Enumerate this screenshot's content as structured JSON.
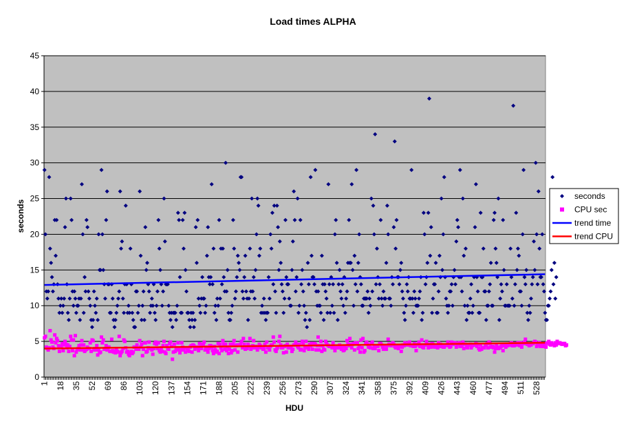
{
  "chart_data": {
    "type": "scatter",
    "title": "Load times ALPHA",
    "xlabel": "HDU",
    "ylabel": "seconds",
    "xlim": [
      1,
      537
    ],
    "ylim": [
      0,
      45
    ],
    "y_ticks": [
      0,
      5,
      10,
      15,
      20,
      25,
      30,
      35,
      40,
      45
    ],
    "x_tick_labels": [
      "1",
      "18",
      "35",
      "52",
      "69",
      "86",
      "103",
      "120",
      "137",
      "154",
      "171",
      "188",
      "205",
      "222",
      "239",
      "256",
      "273",
      "290",
      "307",
      "324",
      "341",
      "358",
      "375",
      "392",
      "409",
      "426",
      "443",
      "460",
      "477",
      "494",
      "511",
      "528"
    ],
    "gridlines": "horizontal",
    "plot_background": "#c0c0c0",
    "legend_position": "right",
    "legend": [
      {
        "name": "seconds",
        "marker": "diamond",
        "color": "#000080"
      },
      {
        "name": "CPU sec",
        "marker": "square",
        "color": "#ff00ff"
      },
      {
        "name": "trend time",
        "marker": "line",
        "color": "#0000ff"
      },
      {
        "name": "trend CPU",
        "marker": "line",
        "color": "#ff0000"
      }
    ],
    "series": [
      {
        "name": "seconds",
        "marker": "diamond",
        "color": "#000080",
        "values": [
          29,
          20,
          12,
          11,
          12,
          28,
          18,
          16,
          14,
          12,
          13,
          22,
          17,
          22,
          13,
          11,
          9,
          10,
          11,
          9,
          10,
          11,
          21,
          25,
          13,
          9,
          8,
          11,
          25,
          22,
          12,
          10,
          12,
          11,
          9,
          10,
          10,
          11,
          8,
          11,
          27,
          20,
          9,
          14,
          12,
          22,
          21,
          12,
          11,
          10,
          8,
          7,
          8,
          12,
          10,
          9,
          11,
          8,
          20,
          15,
          15,
          29,
          20,
          15,
          13,
          11,
          22,
          26,
          13,
          13,
          9,
          9,
          13,
          11,
          8,
          7,
          8,
          9,
          10,
          11,
          12,
          26,
          18,
          19,
          11,
          9,
          13,
          24,
          13,
          9,
          10,
          9,
          18,
          13,
          9,
          8,
          7,
          7,
          12,
          12,
          9,
          10,
          26,
          17,
          8,
          10,
          12,
          8,
          21,
          15,
          16,
          13,
          12,
          9,
          10,
          11,
          10,
          13,
          9,
          8,
          10,
          12,
          22,
          18,
          15,
          13,
          10,
          12,
          25,
          19,
          13,
          13,
          13,
          10,
          9,
          8,
          9,
          7,
          9,
          9,
          9,
          8,
          10,
          23,
          22,
          14,
          9,
          9,
          22,
          18,
          23,
          15,
          12,
          9,
          9,
          8,
          7,
          9,
          8,
          9,
          7,
          8,
          21,
          16,
          22,
          11,
          10,
          9,
          11,
          14,
          11,
          11,
          9,
          10,
          17,
          21,
          14,
          13,
          14,
          27,
          13,
          18,
          9,
          10,
          8,
          11,
          10,
          22,
          11,
          18,
          13,
          18,
          14,
          12,
          30,
          12,
          15,
          9,
          8,
          8,
          9,
          10,
          22,
          18,
          11,
          12,
          14,
          17,
          16,
          15,
          28,
          28,
          12,
          11,
          14,
          17,
          12,
          11,
          8,
          11,
          18,
          12,
          25,
          12,
          14,
          11,
          15,
          20,
          25,
          24,
          17,
          18,
          9,
          10,
          9,
          11,
          9,
          8,
          9,
          9,
          14,
          11,
          20,
          18,
          23,
          13,
          24,
          12,
          9,
          24,
          21,
          15,
          19,
          16,
          13,
          12,
          9,
          11,
          22,
          14,
          13,
          13,
          11,
          10,
          10,
          15,
          19,
          26,
          22,
          12,
          14,
          25,
          9,
          10,
          22,
          13,
          15,
          12,
          10,
          8,
          9,
          7,
          16,
          13,
          8,
          28,
          17,
          14,
          14,
          13,
          29,
          12,
          10,
          12,
          10,
          10,
          9,
          17,
          13,
          8,
          13,
          12,
          11,
          9,
          27,
          13,
          9,
          14,
          10,
          13,
          9,
          20,
          22,
          16,
          8,
          13,
          15,
          12,
          11,
          13,
          10,
          14,
          9,
          11,
          12,
          16,
          22,
          16,
          16,
          27,
          15,
          10,
          17,
          13,
          29,
          12,
          16,
          20,
          14,
          13,
          10,
          10,
          11,
          11,
          11,
          11,
          12,
          9,
          11,
          10,
          25,
          12,
          24,
          20,
          34,
          13,
          18,
          14,
          11,
          13,
          22,
          11,
          10,
          12,
          11,
          11,
          16,
          24,
          20,
          11,
          11,
          10,
          14,
          13,
          21,
          33,
          18,
          22,
          14,
          14,
          13,
          15,
          16,
          12,
          11,
          9,
          8,
          10,
          13,
          12,
          14,
          11,
          11,
          29,
          11,
          9,
          12,
          11,
          10,
          10,
          10,
          11,
          12,
          14,
          8,
          9,
          23,
          20,
          13,
          14,
          16,
          23,
          39,
          17,
          21,
          9,
          11,
          13,
          13,
          16,
          9,
          9,
          12,
          17,
          14,
          25,
          15,
          20,
          28,
          14,
          11,
          10,
          9,
          10,
          12,
          12,
          13,
          10,
          14,
          15,
          13,
          19,
          22,
          21,
          14,
          29,
          14,
          12,
          25,
          17,
          10,
          18,
          8,
          10,
          9,
          9,
          11,
          13,
          9,
          10,
          14,
          21,
          27,
          14,
          12,
          9,
          9,
          23,
          14,
          14,
          18,
          12,
          12,
          8,
          10,
          10,
          12,
          13,
          16,
          10,
          10,
          22,
          23,
          18,
          16,
          14,
          25,
          8,
          11,
          13,
          12,
          22,
          15,
          10,
          10,
          13,
          10,
          10,
          10,
          18,
          14,
          11,
          38,
          10,
          13,
          23,
          15,
          18,
          17,
          12,
          12,
          10,
          20,
          29,
          14,
          13,
          15,
          9,
          8,
          10,
          9,
          11,
          13,
          14,
          19,
          15,
          30,
          20,
          13,
          26,
          18,
          14,
          14,
          20,
          13,
          12,
          9,
          8,
          8,
          10,
          10,
          11,
          12,
          15,
          28,
          13,
          16,
          11,
          14
        ]
      },
      {
        "name": "CPU sec",
        "marker": "square",
        "color": "#ff00ff",
        "values": [
          5.5,
          5.7,
          4.2,
          4.0,
          3.8,
          4.1,
          6.5,
          5.2,
          4.9,
          4.2,
          4.0,
          5.9,
          4.8,
          5.4,
          5.1,
          4.4,
          3.6,
          4.2,
          4.3,
          4.7,
          3.7,
          4.5,
          5.0,
          4.6,
          4.1,
          4.5,
          3.6,
          4.3,
          5.7,
          5.2,
          3.7,
          5.2,
          3.0,
          5.8,
          3.5,
          3.9,
          4.0,
          4.4,
          3.8,
          4.5,
          5.1,
          3.8,
          4.5,
          3.6,
          3.8,
          3.9,
          4.2,
          4.0,
          4.0,
          4.8,
          3.6,
          5.2,
          5.1,
          3.8,
          4.0,
          3.8,
          4.4,
          3.1,
          3.8,
          3.4,
          3.5,
          5.6,
          4.8,
          5.2,
          3.9,
          4.0,
          4.4,
          3.8,
          4.0,
          4.2,
          3.6,
          3.6,
          5.3,
          3.7,
          3.5,
          3.6,
          3.4,
          4.0,
          3.6,
          3.5,
          5.7,
          3.0,
          3.4,
          3.6,
          4.0,
          5.2,
          5.0,
          4.1,
          3.5,
          3.6,
          3.2,
          3.0,
          3.4,
          3.6,
          3.3,
          3.5,
          4.2,
          4.2,
          3.9,
          4.5,
          4.0,
          3.9,
          5.1,
          4.2,
          4.6,
          3.0,
          3.9,
          4.8,
          4.8,
          3.5,
          3.6,
          4.1,
          4.9,
          4.0,
          4.0,
          3.8,
          3.2,
          4.0,
          4.7,
          4.9,
          4.6,
          4.0,
          4.8,
          3.7,
          3.5,
          4.1,
          3.6,
          4.4,
          5.0,
          3.5,
          3.3,
          4.4,
          4.0,
          3.9,
          4.7,
          4.9,
          4.3,
          2.5,
          3.5,
          4.6,
          3.6,
          4.1,
          3.8,
          4.8,
          3.9,
          3.4,
          3.8,
          4.8,
          4.2,
          3.8,
          4.1,
          3.5,
          4.1,
          4.0,
          3.7,
          3.6,
          4.2,
          4.4,
          3.5,
          4.5,
          4.4,
          3.9,
          4.2,
          4.2,
          4.1,
          3.7,
          4.7,
          4.2,
          4.0,
          4.6,
          4.5,
          4.9,
          3.8,
          4.2,
          3.9,
          3.5,
          4.0,
          4.4,
          4.4,
          4.2,
          3.7,
          3.3,
          4.3,
          3.8,
          3.5,
          3.6,
          4.7,
          3.3,
          4.6,
          4.1,
          3.7,
          5.1,
          4.6,
          3.9,
          4.6,
          3.7,
          4.2,
          3.3,
          3.9,
          4.6,
          3.4,
          3.7,
          4.6,
          5.1,
          3.8,
          4.4,
          4.5,
          3.5,
          4.5,
          4.5,
          4.6,
          5.0,
          4.1,
          5.4,
          4.6,
          3.9,
          4.1,
          4.0,
          4.6,
          4.3,
          5.4,
          3.9,
          4.1,
          4.4,
          5.1,
          4.1,
          4.3,
          4.2,
          3.8,
          4.2,
          4.6,
          4.4,
          4.1,
          4.2,
          3.9,
          4.0,
          4.6,
          3.5,
          4.9,
          4.1,
          4.1,
          3.8,
          4.3,
          4.5,
          4.5,
          5.6,
          4.9,
          3.8,
          3.6,
          4.0,
          4.2,
          5.0,
          5.7,
          4.5,
          4.1,
          4.1,
          3.4,
          4.3,
          4.4,
          3.5,
          4.6,
          4.1,
          4.3,
          4.3,
          4.1,
          3.6,
          3.9,
          4.5,
          4.5,
          4.9,
          4.6,
          4.3,
          4.1,
          4.6,
          3.8,
          3.9,
          5.0,
          4.6,
          3.7,
          4.2,
          5.0,
          4.1,
          4.3,
          3.9,
          4.6,
          4.4,
          4.7,
          3.9,
          4.5,
          4.7,
          4.6,
          3.8,
          4.4,
          5.6,
          3.8,
          4.4,
          5.0,
          3.6,
          4.4,
          3.9,
          3.8,
          5.0,
          4.7,
          4.5,
          4.4,
          4.3,
          4.3,
          4.3,
          4.1,
          4.8,
          4.1,
          3.7,
          4.1,
          4.1,
          4.1,
          4.1,
          4.5,
          4.2,
          3.9,
          4.3,
          3.7,
          3.8,
          4.3,
          4.0,
          5.1,
          4.6,
          4.4,
          5.4,
          4.6,
          4.1,
          4.6,
          4.7,
          3.8,
          4.8,
          4.7,
          4.8,
          4.0,
          4.3,
          3.5,
          5.2,
          4.1,
          5.4,
          3.5,
          3.7,
          4.7,
          4.9,
          4.6,
          4.2,
          4.2,
          4.1,
          4.7,
          4.9,
          4.0,
          4.2,
          4.0,
          4.3,
          4.3,
          4.3,
          3.7,
          4.7,
          4.7,
          4.5,
          4.2,
          3.9,
          3.9,
          4.4,
          3.9,
          4.4,
          5.3,
          4.6,
          4.5,
          4.4,
          4.6,
          4.8,
          4.6,
          4.3,
          4.1,
          4.2,
          4.4,
          4.0,
          4.3,
          4.4,
          3.6,
          4.2,
          4.5,
          4.4,
          4.8,
          4.6,
          4.5,
          4.5,
          4.8,
          4.9,
          4.4,
          4.4,
          4.4,
          4.3,
          4.7,
          4.3,
          3.7,
          4.5,
          4.6,
          4.9,
          4.3,
          4.5,
          5.2,
          4.2,
          4.1,
          4.5,
          4.5,
          5.0,
          4.6,
          4.1,
          4.4,
          4.6,
          4.2,
          4.7,
          4.6,
          4.3,
          4.2,
          4.4,
          4.3,
          4.1,
          4.8,
          4.3,
          4.6,
          4.3,
          4.3,
          4.2,
          4.2,
          4.4,
          4.5,
          4.5,
          4.9,
          4.4,
          4.2,
          4.3,
          4.9,
          4.6,
          4.6,
          4.8,
          4.8,
          4.2,
          4.6,
          4.6,
          4.8,
          4.3,
          4.6,
          4.3,
          4.9,
          4.0,
          4.6,
          4.6,
          4.2,
          4.1,
          4.5,
          4.5,
          4.6,
          4.1,
          4.4,
          4.5,
          4.5,
          4.5,
          4.7,
          4.3,
          4.6,
          4.0,
          3.8,
          4.5,
          3.9,
          4.1,
          4.1,
          4.1,
          4.5,
          4.4,
          4.7,
          4.1,
          4.9,
          4.7,
          4.2,
          4.2,
          4.3,
          4.1,
          3.5,
          4.0,
          4.5,
          4.2,
          4.0,
          4.1,
          4.1,
          4.3,
          4.5,
          3.7,
          4.4,
          4.4,
          4.2,
          4.6,
          4.4,
          4.5,
          4.5,
          4.7,
          4.8,
          4.4,
          4.4,
          4.4,
          4.7,
          4.7,
          4.5,
          4.8,
          4.7,
          4.4,
          4.8,
          4.2,
          4.7,
          4.7,
          4.9,
          5.3,
          4.7,
          4.6,
          4.6,
          4.4,
          4.6,
          4.5,
          4.7,
          4.7,
          4.8,
          5.0,
          4.9,
          4.3,
          4.5,
          4.5,
          4.8,
          4.3,
          4.6,
          4.6,
          4.3,
          4.3,
          4.7,
          4.2,
          4.7,
          4.8,
          5.0,
          4.6,
          4.5,
          4.8,
          4.6,
          4.6,
          4.4,
          4.8,
          4.5,
          5.0,
          4.7,
          4.8,
          4.8,
          4.7,
          4.6,
          4.6,
          4.7,
          4.7,
          4.4,
          4.5
        ]
      },
      {
        "name": "trend time",
        "type": "line",
        "color": "#0000ff",
        "x": [
          1,
          537
        ],
        "values": [
          12.9,
          14.4
        ]
      },
      {
        "name": "trend CPU",
        "type": "line",
        "color": "#ff0000",
        "x": [
          1,
          537
        ],
        "values": [
          4.0,
          4.8
        ]
      }
    ]
  }
}
